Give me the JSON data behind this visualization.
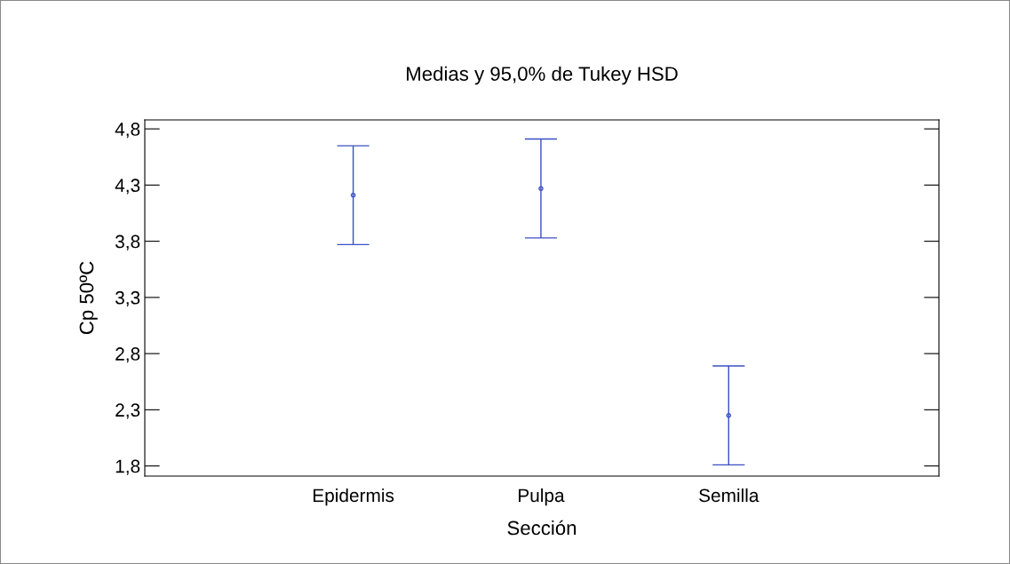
{
  "chart_data": {
    "type": "scatter",
    "title": "Medias y 95,0% de Tukey HSD",
    "xlabel": "Sección",
    "ylabel": "Cp 50ºC",
    "categories": [
      "Epidermis",
      "Pulpa",
      "Semilla"
    ],
    "series": [
      {
        "color": "#3a4fc4",
        "values": [
          4.21,
          4.27,
          2.25
        ],
        "errors": [
          0.44,
          0.44,
          0.44
        ]
      }
    ],
    "marker": "circle",
    "grid": false,
    "legend": false,
    "ylim": [
      1.71,
      4.88
    ],
    "yticks": [
      {
        "value": 1.8,
        "label": "1,8"
      },
      {
        "value": 2.3,
        "label": "2,3"
      },
      {
        "value": 2.8,
        "label": "2,8"
      },
      {
        "value": 3.3,
        "label": "3,3"
      },
      {
        "value": 3.8,
        "label": "3,8"
      },
      {
        "value": 4.3,
        "label": "4,3"
      },
      {
        "value": 4.8,
        "label": "4,8"
      }
    ]
  }
}
